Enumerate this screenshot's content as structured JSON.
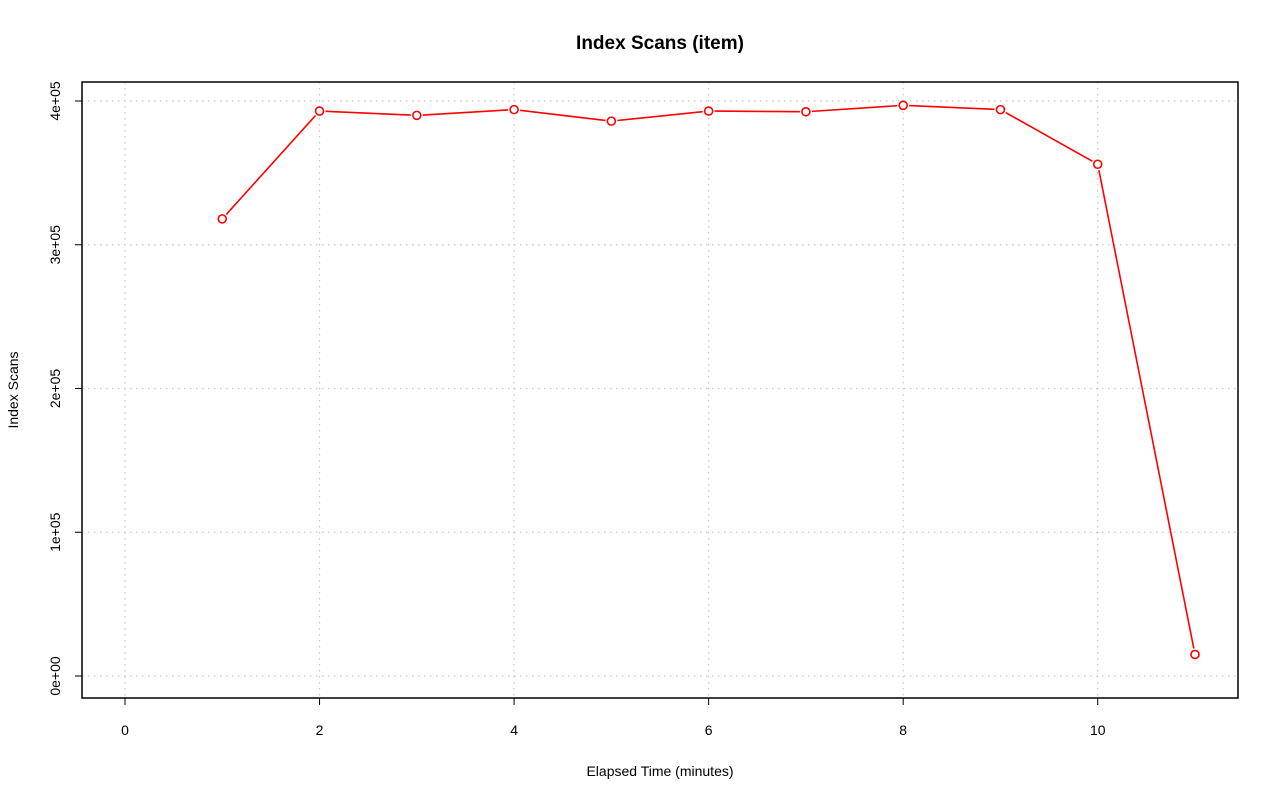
{
  "chart_data": {
    "type": "line",
    "title": "Index Scans (item)",
    "xlabel": "Elapsed Time (minutes)",
    "ylabel": "Index Scans",
    "xlim": [
      0,
      11
    ],
    "ylim": [
      0,
      400000
    ],
    "x_ticks": [
      0,
      2,
      4,
      6,
      8,
      10
    ],
    "x_tick_labels": [
      "0",
      "2",
      "4",
      "6",
      "8",
      "10"
    ],
    "y_ticks": [
      0,
      100000,
      200000,
      300000,
      400000
    ],
    "y_tick_labels": [
      "0e+00",
      "1e+05",
      "2e+05",
      "3e+05",
      "4e+05"
    ],
    "grid": true,
    "grid_style": "dotted",
    "legend": "none",
    "series": [
      {
        "color": "#ff0000",
        "marker": "open-circle",
        "x": [
          1,
          2,
          3,
          4,
          5,
          6,
          7,
          8,
          9,
          10,
          11
        ],
        "y": [
          318000,
          393000,
          390000,
          394000,
          386000,
          393000,
          392500,
          397000,
          394000,
          356000,
          15000
        ]
      }
    ]
  }
}
